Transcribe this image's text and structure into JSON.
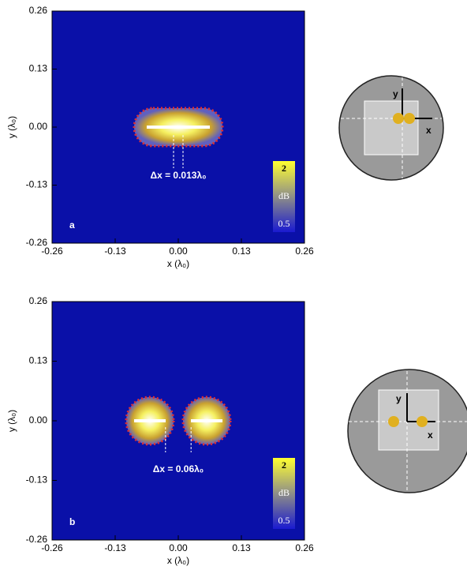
{
  "panels": [
    {
      "label": "a",
      "annotation": "Δx = 0.013λ₀",
      "x_axis": {
        "title": "x (λ₀)",
        "lim": [
          -0.26,
          0.26
        ],
        "ticks": [
          -0.26,
          -0.13,
          {
            "value": 0,
            "label": "0.00"
          },
          0.13,
          0.26
        ]
      },
      "y_axis": {
        "title": "y (λ₀)",
        "lim": [
          -0.26,
          0.26
        ],
        "ticks": [
          -0.26,
          -0.13,
          {
            "value": 0,
            "label": "0.00"
          },
          0.13,
          0.26
        ]
      },
      "colorbar": {
        "max": "2",
        "unit": "dB",
        "min": "0.5"
      },
      "schematic": {
        "y": "y",
        "x": "x"
      }
    },
    {
      "label": "b",
      "annotation": "Δx = 0.06λ₀",
      "x_axis": {
        "title": "x (λ₀)",
        "lim": [
          -0.26,
          0.26
        ],
        "ticks": [
          -0.26,
          -0.13,
          {
            "value": 0,
            "label": "0.00"
          },
          0.13,
          0.26
        ]
      },
      "y_axis": {
        "title": "y (λ₀)",
        "lim": [
          -0.26,
          0.26
        ],
        "ticks": [
          -0.26,
          -0.13,
          {
            "value": 0,
            "label": "0.00"
          },
          0.13,
          0.26
        ]
      },
      "colorbar": {
        "max": "2",
        "unit": "dB",
        "min": "0.5"
      },
      "schematic": {
        "y": "y",
        "x": "x"
      }
    }
  ]
}
